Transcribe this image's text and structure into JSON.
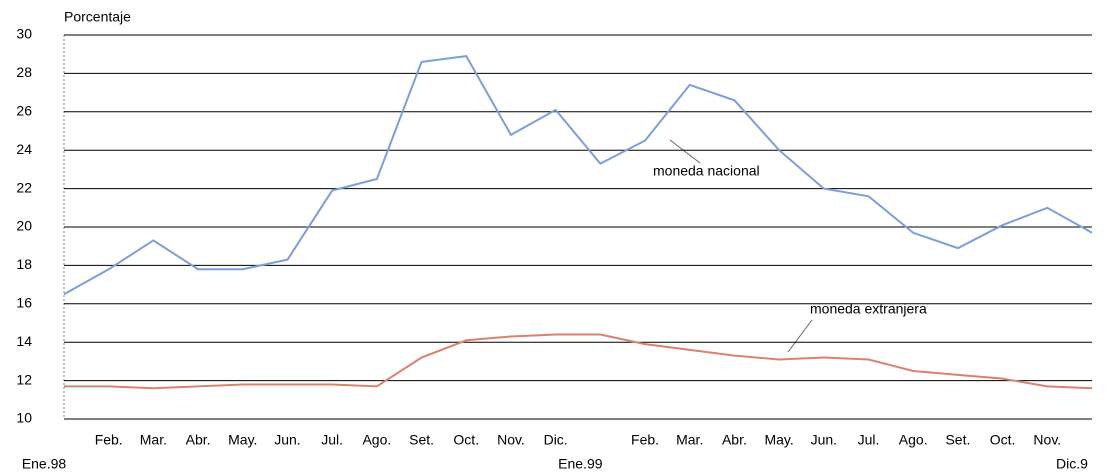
{
  "chart_data": {
    "type": "line",
    "y_label": "Porcentaje",
    "categories": [
      "Ene.98",
      "Feb.",
      "Mar.",
      "Abr.",
      "May.",
      "Jun.",
      "Jul.",
      "Ago.",
      "Set.",
      "Oct.",
      "Nov.",
      "Dic.",
      "Ene.99",
      "Feb.",
      "Mar.",
      "Abr.",
      "May.",
      "Jun.",
      "Jul.",
      "Ago.",
      "Set.",
      "Oct.",
      "Nov.",
      "Dic.9"
    ],
    "series": [
      {
        "name": "moneda nacional",
        "color": "#7b9fd8",
        "values": [
          16.5,
          17.8,
          19.3,
          17.8,
          17.8,
          18.3,
          21.9,
          22.5,
          28.6,
          28.9,
          24.8,
          26.1,
          23.3,
          24.5,
          27.4,
          26.6,
          24.0,
          22.0,
          21.6,
          19.7,
          18.9,
          20.1,
          21.0,
          19.7
        ]
      },
      {
        "name": "moneda extranjera",
        "color": "#d9826f",
        "values": [
          11.7,
          11.7,
          11.6,
          11.7,
          11.8,
          11.8,
          11.8,
          11.7,
          13.2,
          14.1,
          14.3,
          14.4,
          14.4,
          13.9,
          13.6,
          13.3,
          13.1,
          13.2,
          13.1,
          12.5,
          12.3,
          12.1,
          11.7,
          11.6
        ]
      }
    ],
    "ylim": [
      10,
      30
    ],
    "yticks": [
      10,
      12,
      14,
      16,
      18,
      20,
      22,
      24,
      26,
      28,
      30
    ],
    "grid": true
  }
}
